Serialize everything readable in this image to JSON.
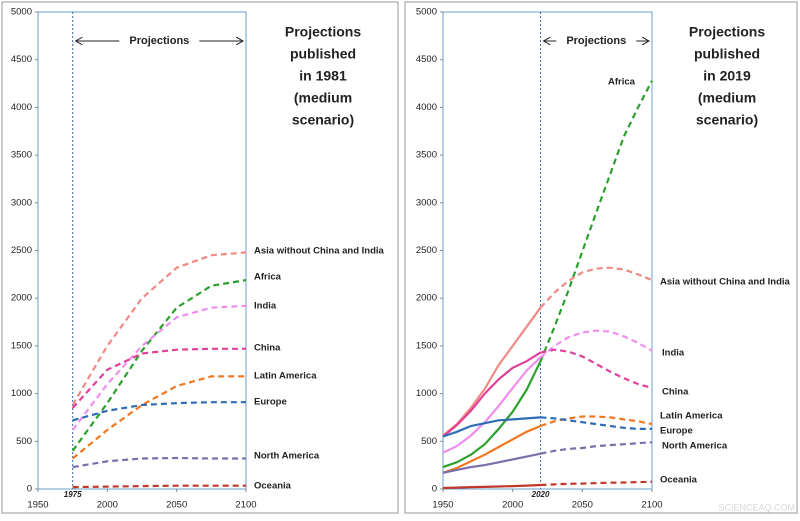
{
  "chart_data": [
    {
      "type": "line",
      "title": [
        "Projections",
        "published",
        "in 1981",
        "(medium",
        "scenario)"
      ],
      "projection_label": "Projections",
      "projection_start": 1975,
      "xlim": [
        1950,
        2100
      ],
      "xticks": [
        1950,
        2000,
        2050,
        2100
      ],
      "ylim": [
        0,
        5000
      ],
      "yticks": [
        0,
        500,
        1000,
        1500,
        2000,
        2500,
        3000,
        3500,
        4000,
        4500,
        5000
      ],
      "x": [
        1975,
        2000,
        2025,
        2050,
        2075,
        2100
      ],
      "series": [
        {
          "name": "Asia without China and India",
          "color": "#f08a84",
          "values": [
            880,
            1500,
            2000,
            2320,
            2450,
            2480
          ]
        },
        {
          "name": "Africa",
          "color": "#2ca02c",
          "values": [
            400,
            900,
            1450,
            1900,
            2130,
            2190
          ]
        },
        {
          "name": "India",
          "color": "#f08ef0",
          "values": [
            620,
            1100,
            1500,
            1800,
            1900,
            1920
          ]
        },
        {
          "name": "China",
          "color": "#e0409a",
          "values": [
            850,
            1250,
            1420,
            1460,
            1470,
            1470
          ]
        },
        {
          "name": "Latin America",
          "color": "#f07820",
          "values": [
            320,
            620,
            880,
            1080,
            1180,
            1180
          ]
        },
        {
          "name": "Europe",
          "color": "#2f6db5",
          "values": [
            720,
            820,
            880,
            900,
            910,
            910
          ]
        },
        {
          "name": "North America",
          "color": "#7a6fa8",
          "values": [
            230,
            290,
            320,
            325,
            320,
            320
          ]
        },
        {
          "name": "Oceania",
          "color": "#c0392b",
          "values": [
            20,
            25,
            30,
            35,
            35,
            35
          ]
        }
      ]
    },
    {
      "type": "line",
      "title": [
        "Projections",
        "published",
        "in 2019",
        "(medium",
        "scenario)"
      ],
      "projection_label": "Projections",
      "projection_start": 2020,
      "xlim": [
        1950,
        2100
      ],
      "xticks": [
        1950,
        2000,
        2050,
        2100
      ],
      "ylim": [
        0,
        5000
      ],
      "yticks": [
        0,
        500,
        1000,
        1500,
        2000,
        2500,
        3000,
        3500,
        4000,
        4500,
        5000
      ],
      "x": [
        1950,
        1960,
        1970,
        1980,
        1990,
        2000,
        2010,
        2020,
        2030,
        2040,
        2050,
        2060,
        2070,
        2080,
        2090,
        2100
      ],
      "series": [
        {
          "name": "Africa",
          "color": "#2ca02c",
          "values": [
            230,
            280,
            360,
            470,
            630,
            810,
            1040,
            1340,
            1700,
            2080,
            2490,
            2900,
            3300,
            3700,
            4000,
            4280
          ]
        },
        {
          "name": "Asia without China and India",
          "color": "#f08a84",
          "values": [
            560,
            680,
            850,
            1050,
            1300,
            1500,
            1700,
            1900,
            2060,
            2180,
            2270,
            2310,
            2320,
            2300,
            2250,
            2190
          ]
        },
        {
          "name": "India",
          "color": "#f08ef0",
          "values": [
            380,
            450,
            560,
            700,
            870,
            1060,
            1240,
            1380,
            1500,
            1590,
            1640,
            1660,
            1650,
            1600,
            1530,
            1450
          ]
        },
        {
          "name": "China",
          "color": "#e0409a",
          "values": [
            550,
            670,
            820,
            1000,
            1150,
            1270,
            1340,
            1430,
            1460,
            1440,
            1390,
            1310,
            1230,
            1160,
            1100,
            1060
          ]
        },
        {
          "name": "Latin America",
          "color": "#f07820",
          "values": [
            170,
            220,
            290,
            360,
            440,
            520,
            600,
            660,
            710,
            740,
            760,
            760,
            750,
            730,
            710,
            680
          ]
        },
        {
          "name": "Europe",
          "color": "#2f6db5",
          "values": [
            550,
            600,
            660,
            690,
            720,
            730,
            740,
            750,
            740,
            720,
            700,
            680,
            660,
            640,
            630,
            630
          ]
        },
        {
          "name": "North America",
          "color": "#7a6fa8",
          "values": [
            170,
            200,
            230,
            250,
            280,
            310,
            340,
            370,
            400,
            420,
            430,
            450,
            460,
            470,
            480,
            490
          ]
        },
        {
          "name": "Oceania",
          "color": "#c0392b",
          "values": [
            10,
            15,
            20,
            22,
            26,
            30,
            36,
            42,
            48,
            55,
            57,
            62,
            66,
            68,
            72,
            75
          ]
        }
      ]
    }
  ],
  "watermark": "SCIENCEAQ.COM"
}
